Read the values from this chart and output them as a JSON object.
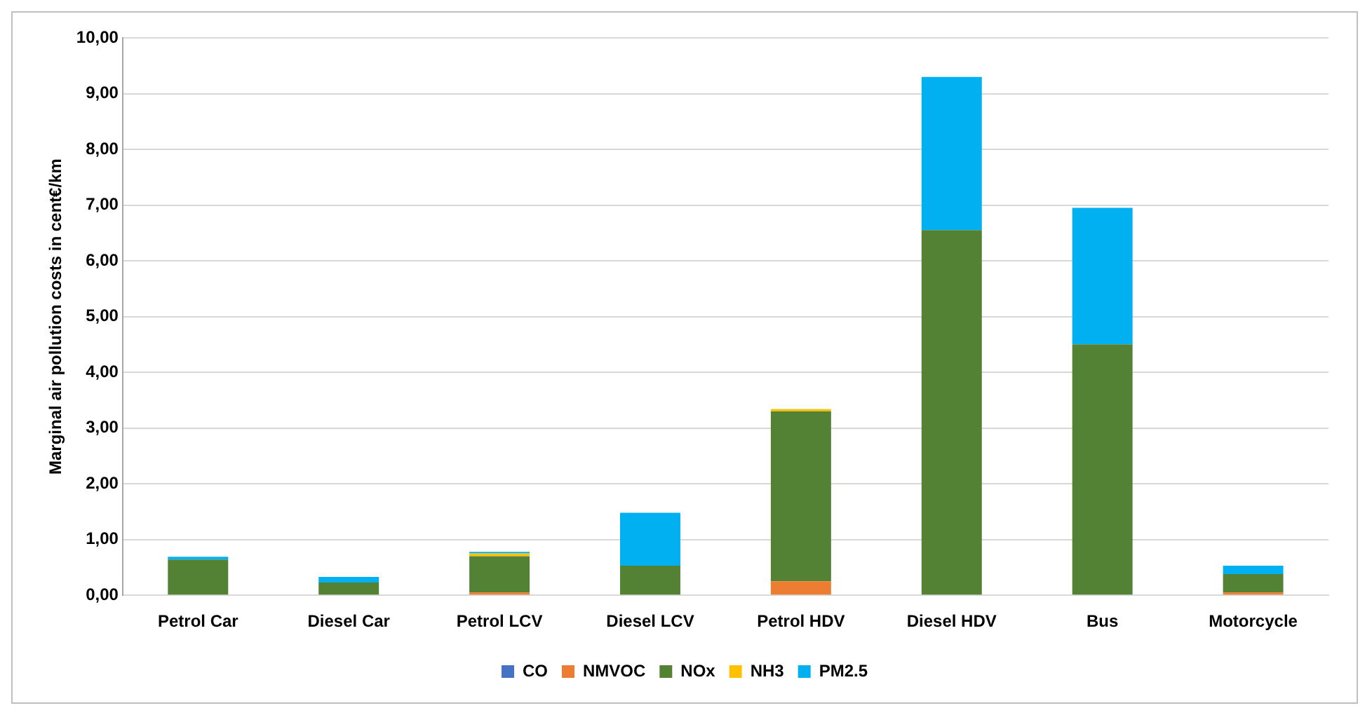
{
  "chart_data": {
    "type": "bar",
    "stacked": true,
    "ylabel": "Marginal air pollution costs in cent€/km",
    "categories": [
      "Petrol Car",
      "Diesel Car",
      "Petrol LCV",
      "Diesel LCV",
      "Petrol HDV",
      "Diesel HDV",
      "Bus",
      "Motorcycle"
    ],
    "series": [
      {
        "name": "CO",
        "color": "#4472c4",
        "values": [
          0,
          0,
          0,
          0,
          0,
          0,
          0,
          0
        ]
      },
      {
        "name": "NMVOC",
        "color": "#ed7d31",
        "values": [
          0,
          0,
          0.05,
          0,
          0.25,
          0,
          0,
          0.05
        ]
      },
      {
        "name": "NOx",
        "color": "#548235",
        "values": [
          0.64,
          0.23,
          0.65,
          0.53,
          3.05,
          6.55,
          4.5,
          0.33
        ]
      },
      {
        "name": "NH3",
        "color": "#ffc000",
        "values": [
          0,
          0,
          0.05,
          0,
          0.04,
          0,
          0,
          0
        ]
      },
      {
        "name": "PM2.5",
        "color": "#00b0f0",
        "values": [
          0.05,
          0.1,
          0.03,
          0.95,
          0,
          2.75,
          2.45,
          0.15
        ]
      }
    ],
    "ylim": [
      0,
      10
    ],
    "yticks": [
      {
        "value": 0,
        "label": "0,00"
      },
      {
        "value": 1,
        "label": "1,00"
      },
      {
        "value": 2,
        "label": "2,00"
      },
      {
        "value": 3,
        "label": "3,00"
      },
      {
        "value": 4,
        "label": "4,00"
      },
      {
        "value": 5,
        "label": "5,00"
      },
      {
        "value": 6,
        "label": "6,00"
      },
      {
        "value": 7,
        "label": "7,00"
      },
      {
        "value": 8,
        "label": "8,00"
      },
      {
        "value": 9,
        "label": "9,00"
      },
      {
        "value": 10,
        "label": "10,00"
      }
    ],
    "grid": "y",
    "legend": "bottom"
  }
}
